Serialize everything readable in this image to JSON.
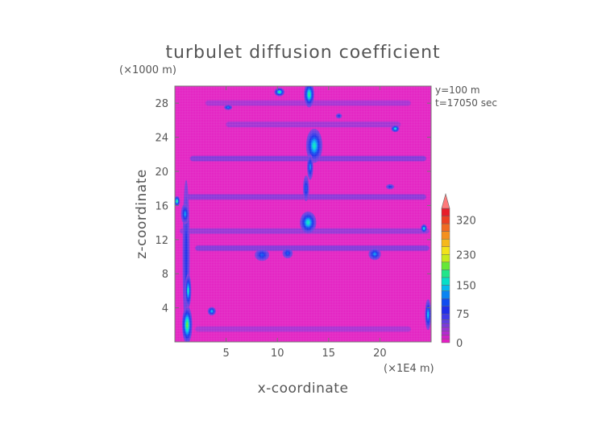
{
  "chart_data": {
    "type": "heatmap",
    "title": "turbulet diffusion coefficient",
    "xlabel": "x-coordinate",
    "ylabel": "z-coordinate",
    "x_unit": "(×1E4 m)",
    "y_unit": "(×1000 m)",
    "annotations": [
      "y=100 m",
      "t=17050 sec"
    ],
    "xlim": [
      0,
      25
    ],
    "ylim": [
      0,
      30
    ],
    "x_ticks": [
      5,
      10,
      15,
      20
    ],
    "y_ticks": [
      4,
      8,
      12,
      16,
      20,
      24,
      28
    ],
    "colorbar": {
      "min": 0,
      "max": 350,
      "ticks": [
        0,
        75,
        150,
        230,
        320
      ],
      "extend": "max",
      "levels": [
        {
          "lo": 0,
          "hi": 10,
          "color": "#e21fc2"
        },
        {
          "lo": 10,
          "hi": 20,
          "color": "#cf22c8"
        },
        {
          "lo": 20,
          "hi": 30,
          "color": "#b42ad0"
        },
        {
          "lo": 30,
          "hi": 40,
          "color": "#9a32d6"
        },
        {
          "lo": 40,
          "hi": 50,
          "color": "#7c38dc"
        },
        {
          "lo": 50,
          "hi": 60,
          "color": "#5f3ee2"
        },
        {
          "lo": 60,
          "hi": 75,
          "color": "#3f3ae6"
        },
        {
          "lo": 75,
          "hi": 95,
          "color": "#1f2ee8"
        },
        {
          "lo": 95,
          "hi": 115,
          "color": "#0f4cf0"
        },
        {
          "lo": 115,
          "hi": 135,
          "color": "#0a84f2"
        },
        {
          "lo": 135,
          "hi": 150,
          "color": "#06b8ee"
        },
        {
          "lo": 150,
          "hi": 170,
          "color": "#05dfc8"
        },
        {
          "lo": 170,
          "hi": 190,
          "color": "#20e58a"
        },
        {
          "lo": 190,
          "hi": 210,
          "color": "#66e836"
        },
        {
          "lo": 210,
          "hi": 230,
          "color": "#c6ea1c"
        },
        {
          "lo": 230,
          "hi": 250,
          "color": "#f2e21a"
        },
        {
          "lo": 250,
          "hi": 270,
          "color": "#f5b81c"
        },
        {
          "lo": 270,
          "hi": 290,
          "color": "#f4901e"
        },
        {
          "lo": 290,
          "hi": 310,
          "color": "#f06a22"
        },
        {
          "lo": 310,
          "hi": 330,
          "color": "#ec4024"
        },
        {
          "lo": 330,
          "hi": 350,
          "color": "#e81e2a"
        }
      ],
      "extend_color": "#ff7a7a"
    },
    "features": [
      {
        "x": 1.1,
        "z": 10,
        "rx": 0.35,
        "rz": 9,
        "value": 90
      },
      {
        "x": 1.2,
        "z": 2,
        "rx": 0.5,
        "rz": 2.2,
        "value": 200
      },
      {
        "x": 1.3,
        "z": 6,
        "rx": 0.3,
        "rz": 2,
        "value": 160
      },
      {
        "x": 1.0,
        "z": 15,
        "rx": 0.4,
        "rz": 1.2,
        "value": 120
      },
      {
        "x": 3.6,
        "z": 3.6,
        "rx": 0.4,
        "rz": 0.5,
        "value": 150
      },
      {
        "x": 13.1,
        "z": 29,
        "rx": 0.5,
        "rz": 1.5,
        "value": 190
      },
      {
        "x": 13.6,
        "z": 23,
        "rx": 0.8,
        "rz": 2,
        "value": 170
      },
      {
        "x": 13.2,
        "z": 20.5,
        "rx": 0.3,
        "rz": 1.5,
        "value": 120
      },
      {
        "x": 12.8,
        "z": 18,
        "rx": 0.3,
        "rz": 1.5,
        "value": 100
      },
      {
        "x": 13.0,
        "z": 14,
        "rx": 0.8,
        "rz": 1.3,
        "value": 160
      },
      {
        "x": 10.2,
        "z": 29.3,
        "rx": 0.5,
        "rz": 0.5,
        "value": 190
      },
      {
        "x": 5.2,
        "z": 27.5,
        "rx": 0.4,
        "rz": 0.3,
        "value": 120
      },
      {
        "x": 8.5,
        "z": 10.2,
        "rx": 0.7,
        "rz": 0.7,
        "value": 110
      },
      {
        "x": 11.0,
        "z": 10.4,
        "rx": 0.5,
        "rz": 0.6,
        "value": 100
      },
      {
        "x": 19.5,
        "z": 10.3,
        "rx": 0.6,
        "rz": 0.7,
        "value": 130
      },
      {
        "x": 24.3,
        "z": 13.3,
        "rx": 0.3,
        "rz": 0.5,
        "value": 160
      },
      {
        "x": 24.7,
        "z": 3.2,
        "rx": 0.3,
        "rz": 1.8,
        "value": 150
      },
      {
        "x": 0.2,
        "z": 16.5,
        "rx": 0.3,
        "rz": 0.6,
        "value": 190
      },
      {
        "x": 21.5,
        "z": 25,
        "rx": 0.4,
        "rz": 0.4,
        "value": 170
      },
      {
        "x": 16,
        "z": 26.5,
        "rx": 0.3,
        "rz": 0.3,
        "value": 90
      },
      {
        "x": 21,
        "z": 18.2,
        "rx": 0.4,
        "rz": 0.3,
        "value": 80
      }
    ],
    "bands": [
      {
        "z": 21.5,
        "x0": 1.5,
        "x1": 24.5,
        "value": 70
      },
      {
        "z": 17.0,
        "x0": 1.0,
        "x1": 24.5,
        "value": 60
      },
      {
        "z": 13.0,
        "x0": 0.5,
        "x1": 24.8,
        "value": 55
      },
      {
        "z": 11.0,
        "x0": 2.0,
        "x1": 24.8,
        "value": 70
      },
      {
        "z": 25.5,
        "x0": 5.0,
        "x1": 22.0,
        "value": 50
      },
      {
        "z": 28.0,
        "x0": 3.0,
        "x1": 23.0,
        "value": 45
      },
      {
        "z": 1.5,
        "x0": 2.0,
        "x1": 23.0,
        "value": 40
      }
    ]
  }
}
